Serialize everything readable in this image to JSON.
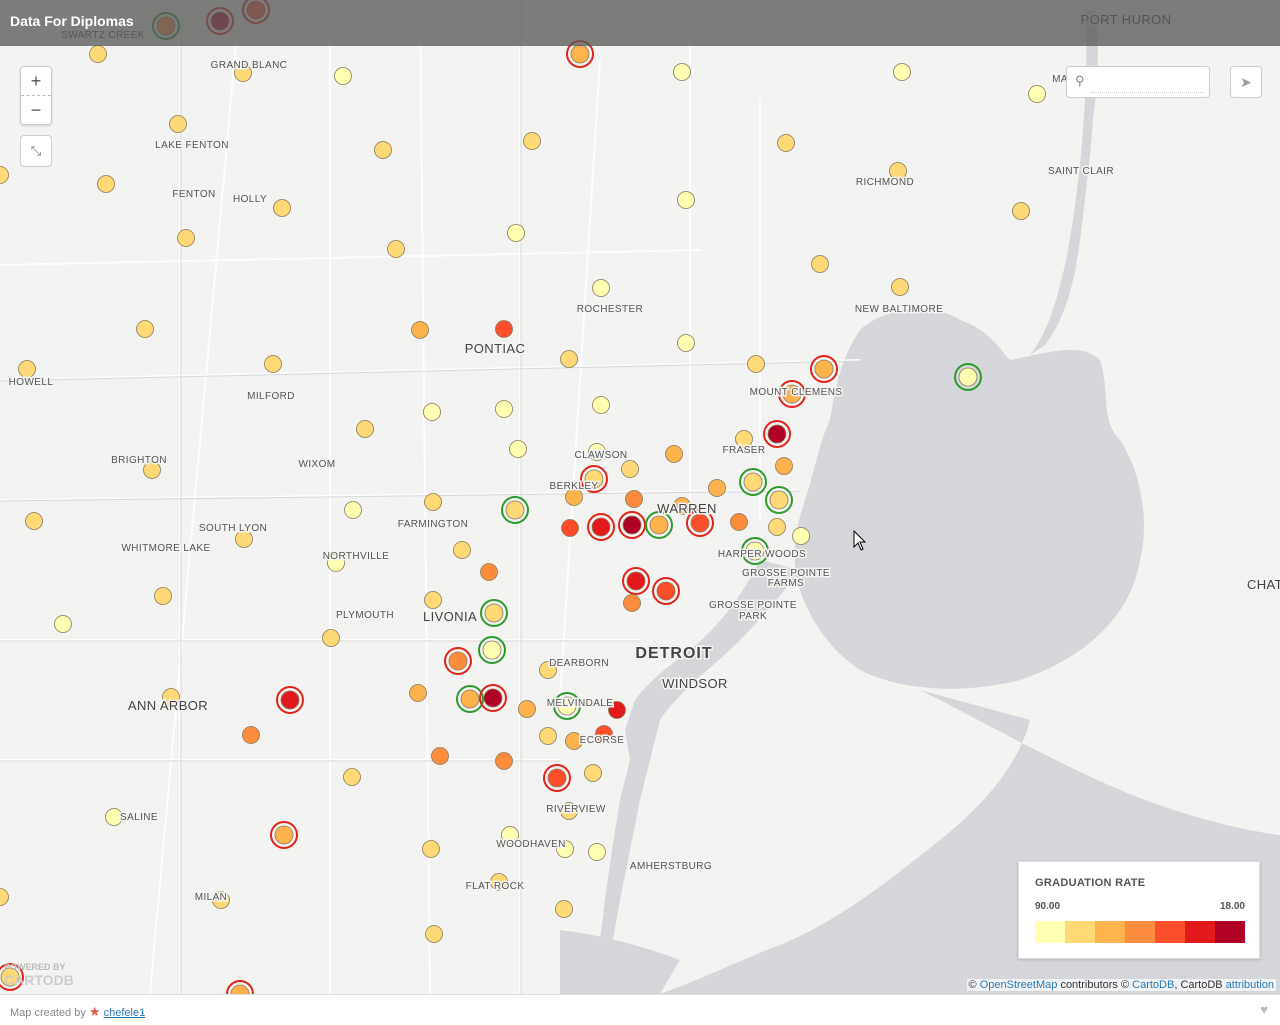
{
  "header": {
    "title": "Data For Diplomas"
  },
  "controls": {
    "zoom_in": "+",
    "zoom_out": "−",
    "fullscreen": "⤡",
    "share": "➤",
    "search_placeholder": ""
  },
  "legend": {
    "title": "GRADUATION RATE",
    "min_label": "90.00",
    "max_label": "18.00",
    "ramp_colors": [
      "#ffffb2",
      "#fed976",
      "#feb24c",
      "#fd8d3c",
      "#fc4e2a",
      "#e31a1c",
      "#b10026"
    ]
  },
  "attribution": {
    "copyright": "©",
    "osm": "OpenStreetMap",
    "contributors": "contributors ©",
    "cartodb": "CartoDB",
    "cartodb2": ", CartoDB",
    "attribution": "attribution"
  },
  "logo": {
    "line1": "POWERED BY",
    "line2": "CARTODB"
  },
  "footer": {
    "created_by": "Map created by",
    "user": "chefele1"
  },
  "colors": {
    "water": "#d4d6d9",
    "land": "#f3f3f1",
    "road": "#ffffff",
    "highlight_good": "#2e9b2e",
    "highlight_bad": "#e2231a"
  },
  "places": [
    {
      "name": "SWARTZ CREEK",
      "cls": "s"
    },
    {
      "name": "GRAND BLANC",
      "cls": "s"
    },
    {
      "name": "PORT HURON",
      "cls": "m"
    },
    {
      "name": "LAKE FENTON",
      "cls": "s"
    },
    {
      "name": "FENTON",
      "cls": "s"
    },
    {
      "name": "HOLLY",
      "cls": "s"
    },
    {
      "name": "RICHMOND",
      "cls": "s"
    },
    {
      "name": "SAINT CLAIR",
      "cls": "s"
    },
    {
      "name": "ROCHESTER",
      "cls": "s"
    },
    {
      "name": "NEW BALTIMORE",
      "cls": "s"
    },
    {
      "name": "PONTIAC",
      "cls": "m"
    },
    {
      "name": "HOWELL",
      "cls": "s"
    },
    {
      "name": "MILFORD",
      "cls": "s"
    },
    {
      "name": "MOUNT CLEMENS",
      "cls": "s"
    },
    {
      "name": "BRIGHTON",
      "cls": "s"
    },
    {
      "name": "WIXOM",
      "cls": "s"
    },
    {
      "name": "CLAWSON",
      "cls": "s"
    },
    {
      "name": "FRASER",
      "cls": "s"
    },
    {
      "name": "BERKLEY",
      "cls": "s"
    },
    {
      "name": "WARREN",
      "cls": "m"
    },
    {
      "name": "FARMINGTON",
      "cls": "s"
    },
    {
      "name": "SOUTH LYON",
      "cls": "s"
    },
    {
      "name": "WHITMORE LAKE",
      "cls": "s"
    },
    {
      "name": "NORTHVILLE",
      "cls": "s"
    },
    {
      "name": "HARPER WOODS",
      "cls": "s"
    },
    {
      "name": "GROSSE POINTE",
      "cls": "s"
    },
    {
      "name": "FARMS",
      "cls": "s"
    },
    {
      "name": "GROSSE POINTE",
      "cls": "s"
    },
    {
      "name": "PARK",
      "cls": "s"
    },
    {
      "name": "PLYMOUTH",
      "cls": "s"
    },
    {
      "name": "LIVONIA",
      "cls": "m"
    },
    {
      "name": "DETROIT",
      "cls": "l"
    },
    {
      "name": "DEARBORN",
      "cls": "s"
    },
    {
      "name": "WINDSOR",
      "cls": "m"
    },
    {
      "name": "ANN ARBOR",
      "cls": "m"
    },
    {
      "name": "MELVINDALE",
      "cls": "s"
    },
    {
      "name": "ECORSE",
      "cls": "s"
    },
    {
      "name": "RIVERVIEW",
      "cls": "s"
    },
    {
      "name": "SALINE",
      "cls": "s"
    },
    {
      "name": "WOODHAVEN",
      "cls": "s"
    },
    {
      "name": "AMHERSTBURG",
      "cls": "s"
    },
    {
      "name": "FLAT ROCK",
      "cls": "s"
    },
    {
      "name": "MILAN",
      "cls": "s"
    },
    {
      "name": "CHAT",
      "cls": "m"
    },
    {
      "name": "MA",
      "cls": "s"
    }
  ]
}
